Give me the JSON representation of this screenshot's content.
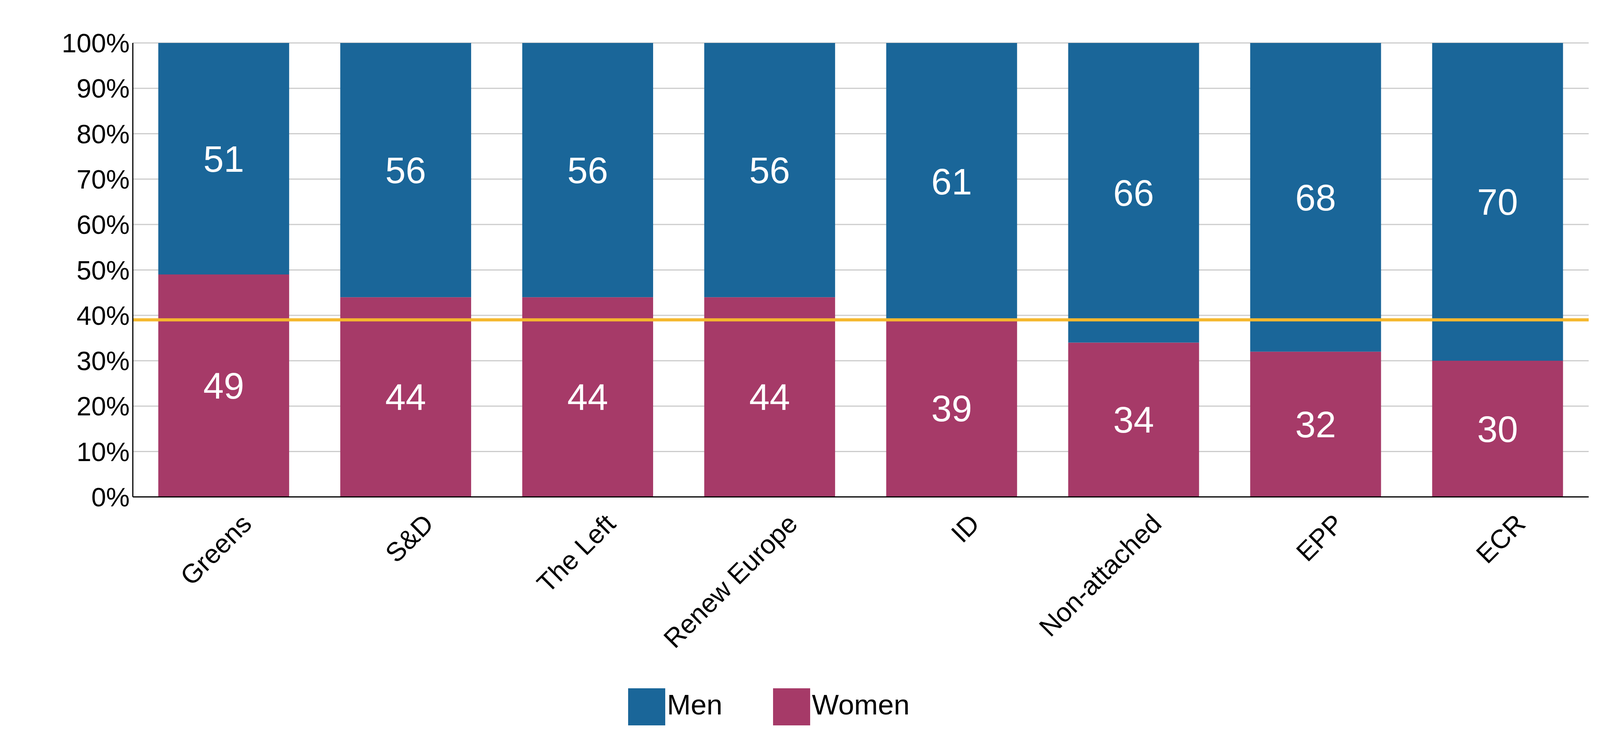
{
  "chart_data": {
    "type": "bar",
    "categories": [
      "Greens",
      "S&D",
      "The Left",
      "Renew Europe",
      "ID",
      "Non-attached",
      "EPP",
      "ECR"
    ],
    "series": [
      {
        "name": "Women",
        "color": "#a63a68",
        "values": [
          49,
          44,
          44,
          44,
          39,
          34,
          32,
          30
        ]
      },
      {
        "name": "Men",
        "color": "#1a6699",
        "values": [
          51,
          56,
          56,
          56,
          61,
          66,
          68,
          70
        ]
      }
    ],
    "stacked": true,
    "data_labels": true,
    "legend": "bottom",
    "grid": true,
    "ylim": [
      0,
      100
    ],
    "yticks": [
      {
        "value": 0,
        "label": "0%"
      },
      {
        "value": 10,
        "label": "10%"
      },
      {
        "value": 20,
        "label": "20%"
      },
      {
        "value": 30,
        "label": "30%"
      },
      {
        "value": 40,
        "label": "40%"
      },
      {
        "value": 50,
        "label": "50%"
      },
      {
        "value": 60,
        "label": "60%"
      },
      {
        "value": 70,
        "label": "70%"
      },
      {
        "value": 80,
        "label": "80%"
      },
      {
        "value": 90,
        "label": "90%"
      },
      {
        "value": 100,
        "label": "100%"
      }
    ],
    "reference_line": 39
  }
}
